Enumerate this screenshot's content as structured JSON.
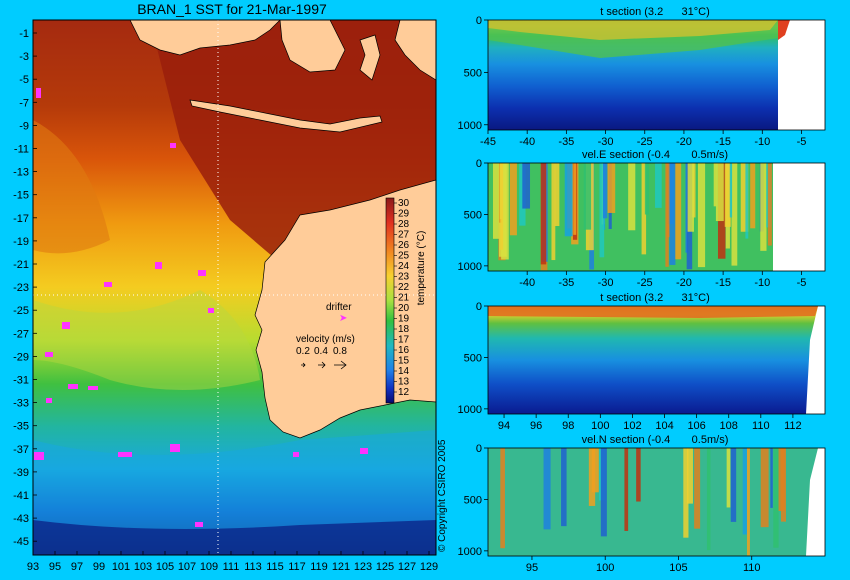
{
  "main_map": {
    "title": "BRAN_1 SST for 21-Mar-1997",
    "lat_ticks": [
      "-1",
      "-3",
      "-5",
      "-7",
      "-9",
      "-11",
      "-13",
      "-15",
      "-17",
      "-19",
      "-21",
      "-23",
      "-25",
      "-27",
      "-29",
      "-31",
      "-33",
      "-35",
      "-37",
      "-39",
      "-41",
      "-43",
      "-45"
    ],
    "lon_ticks": [
      "93",
      "95",
      "97",
      "99",
      "101",
      "103",
      "105",
      "107",
      "109",
      "111",
      "113",
      "115",
      "117",
      "119",
      "121",
      "123",
      "125",
      "127",
      "129"
    ],
    "colorbar": {
      "label": "temperature (°C)",
      "ticks": [
        "30",
        "29",
        "28",
        "27",
        "26",
        "25",
        "24",
        "23",
        "22",
        "21",
        "20",
        "19",
        "18",
        "17",
        "16",
        "15",
        "14",
        "13",
        "12"
      ]
    },
    "legend": {
      "drifter_label": "drifter",
      "velocity_title": "velocity (m/s)",
      "velocity_values": [
        "0.2",
        "0.4",
        "0.8"
      ],
      "arrow_glyph": "➤"
    },
    "copyright": "© Copyright CSIRO 2005",
    "colors": {
      "background": "#00ccff",
      "land": "#ffcc99",
      "drifter": "#ff33ff"
    }
  },
  "chart_data": [
    {
      "type": "heatmap",
      "title": "BRAN_1 SST for 21-Mar-1997",
      "x": "longitude",
      "y": "latitude",
      "xlim": [
        93,
        130
      ],
      "ylim": [
        -46,
        0
      ],
      "value_range": [
        12,
        31
      ],
      "field_unit": "temperature (°C)",
      "velocity_legend": [
        0.2,
        0.4,
        0.8
      ],
      "section_lines": {
        "latitude": -23,
        "longitude": 110
      }
    },
    {
      "type": "heatmap",
      "title": "t section (3.2      31°C)",
      "x_ticks": [
        "-45",
        "-40",
        "-35",
        "-30",
        "-25",
        "-20",
        "-15",
        "-10",
        "-5"
      ],
      "y_ticks": [
        "0",
        "500",
        "1000"
      ],
      "xlim": [
        -45,
        -2
      ],
      "ylim": [
        1050,
        0
      ],
      "value_range": [
        3.2,
        31
      ]
    },
    {
      "type": "heatmap",
      "title": "vel.E section (-0.4       0.5m/s)",
      "x_ticks": [
        "-40",
        "-35",
        "-30",
        "-25",
        "-20",
        "-15",
        "-10",
        "-5"
      ],
      "y_ticks": [
        "0",
        "500",
        "1000"
      ],
      "xlim": [
        -45,
        -2
      ],
      "ylim": [
        1050,
        0
      ],
      "value_range": [
        -0.4,
        0.5
      ]
    },
    {
      "type": "heatmap",
      "title": "t section (3.2      31°C)",
      "x_ticks": [
        "94",
        "96",
        "98",
        "100",
        "102",
        "104",
        "106",
        "108",
        "110",
        "112"
      ],
      "y_ticks": [
        "0",
        "500",
        "1000"
      ],
      "xlim": [
        93,
        114
      ],
      "ylim": [
        1050,
        0
      ],
      "value_range": [
        3.2,
        31
      ]
    },
    {
      "type": "heatmap",
      "title": "vel.N section (-0.4       0.5m/s)",
      "x_ticks": [
        "95",
        "100",
        "105",
        "110"
      ],
      "y_ticks": [
        "0",
        "500",
        "1000"
      ],
      "xlim": [
        92,
        115
      ],
      "ylim": [
        1050,
        0
      ],
      "value_range": [
        -0.4,
        0.5
      ]
    }
  ]
}
